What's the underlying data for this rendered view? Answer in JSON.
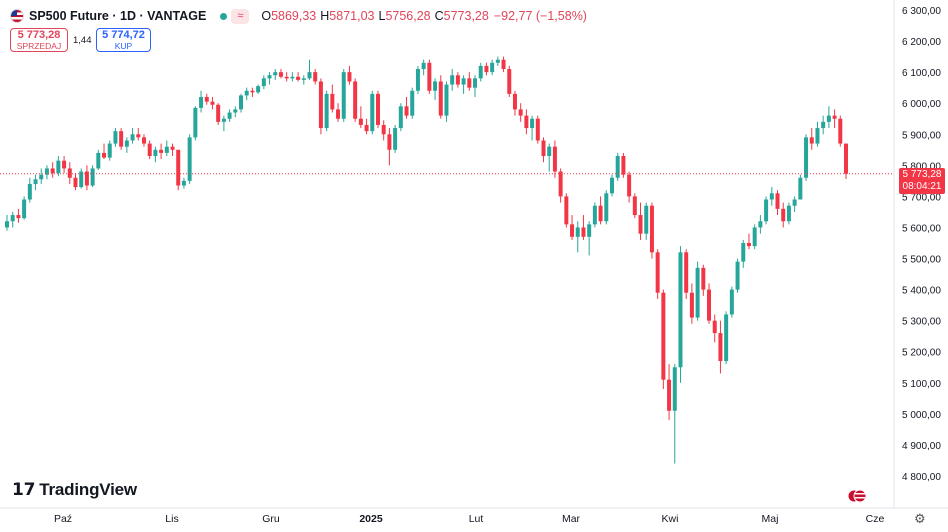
{
  "header": {
    "title": "SP500 Future · 1D · VANTAGE",
    "open_label": "O",
    "open": "5869,33",
    "high_label": "H",
    "high": "5871,03",
    "low_label": "L",
    "low": "5756,28",
    "close_label": "C",
    "close": "5773,28",
    "change": "−92,77 (−1,58%)"
  },
  "trade": {
    "sell_price": "5 773,28",
    "sell_label": "SPRZEDAJ",
    "spread": "1,44",
    "buy_price": "5 774,72",
    "buy_label": "KUP"
  },
  "last_price": {
    "value": "5 773,28",
    "countdown": "08:04:21"
  },
  "branding": {
    "logo_text": "TradingView"
  },
  "colors": {
    "up": "#26a69a",
    "down": "#f23645",
    "buy": "#2962ff",
    "last_line": "#f23645"
  },
  "chart_data": {
    "type": "candlestick",
    "y_ticks": [
      "4 800,00",
      "4 900,00",
      "5 000,00",
      "5 100,00",
      "5 200,00",
      "5 300,00",
      "5 400,00",
      "5 500,00",
      "5 600,00",
      "5 700,00",
      "5 800,00",
      "5 900,00",
      "6 000,00",
      "6 100,00",
      "6 200,00",
      "6 300,00"
    ],
    "x_ticks": [
      "Paź",
      "Lis",
      "Gru",
      "2025",
      "Lut",
      "Mar",
      "Kwi",
      "Maj",
      "Cze"
    ],
    "ylim": [
      4780,
      6320
    ],
    "grid": false,
    "ohlc": [
      [
        5600,
        5640,
        5590,
        5620
      ],
      [
        5620,
        5650,
        5600,
        5640
      ],
      [
        5640,
        5660,
        5615,
        5630
      ],
      [
        5630,
        5700,
        5625,
        5690
      ],
      [
        5690,
        5760,
        5680,
        5740
      ],
      [
        5740,
        5770,
        5720,
        5755
      ],
      [
        5755,
        5790,
        5740,
        5770
      ],
      [
        5770,
        5800,
        5755,
        5790
      ],
      [
        5790,
        5810,
        5760,
        5775
      ],
      [
        5775,
        5830,
        5765,
        5815
      ],
      [
        5815,
        5830,
        5775,
        5790
      ],
      [
        5790,
        5810,
        5740,
        5760
      ],
      [
        5760,
        5775,
        5720,
        5730
      ],
      [
        5730,
        5790,
        5725,
        5780
      ],
      [
        5780,
        5800,
        5720,
        5735
      ],
      [
        5735,
        5800,
        5730,
        5790
      ],
      [
        5790,
        5850,
        5785,
        5840
      ],
      [
        5840,
        5870,
        5820,
        5825
      ],
      [
        5825,
        5880,
        5815,
        5870
      ],
      [
        5870,
        5920,
        5860,
        5910
      ],
      [
        5910,
        5920,
        5850,
        5860
      ],
      [
        5860,
        5890,
        5840,
        5880
      ],
      [
        5880,
        5920,
        5870,
        5900
      ],
      [
        5900,
        5920,
        5880,
        5890
      ],
      [
        5890,
        5900,
        5860,
        5870
      ],
      [
        5870,
        5880,
        5820,
        5830
      ],
      [
        5830,
        5860,
        5810,
        5850
      ],
      [
        5850,
        5870,
        5820,
        5840
      ],
      [
        5840,
        5880,
        5830,
        5860
      ],
      [
        5860,
        5870,
        5830,
        5850
      ],
      [
        5850,
        5850,
        5720,
        5735
      ],
      [
        5735,
        5760,
        5725,
        5750
      ],
      [
        5750,
        5900,
        5740,
        5890
      ],
      [
        5890,
        5990,
        5880,
        5985
      ],
      [
        5985,
        6040,
        5970,
        6020
      ],
      [
        6020,
        6030,
        5995,
        6005
      ],
      [
        6005,
        6020,
        5980,
        5995
      ],
      [
        5995,
        6000,
        5930,
        5940
      ],
      [
        5940,
        5960,
        5910,
        5950
      ],
      [
        5950,
        5980,
        5940,
        5970
      ],
      [
        5970,
        5990,
        5955,
        5980
      ],
      [
        5980,
        6030,
        5970,
        6025
      ],
      [
        6025,
        6050,
        6010,
        6040
      ],
      [
        6040,
        6050,
        6020,
        6035
      ],
      [
        6035,
        6060,
        6030,
        6055
      ],
      [
        6055,
        6090,
        6045,
        6080
      ],
      [
        6080,
        6100,
        6060,
        6090
      ],
      [
        6090,
        6110,
        6075,
        6100
      ],
      [
        6100,
        6110,
        6080,
        6085
      ],
      [
        6085,
        6100,
        6070,
        6080
      ],
      [
        6080,
        6100,
        6070,
        6085
      ],
      [
        6085,
        6100,
        6070,
        6075
      ],
      [
        6075,
        6090,
        6060,
        6080
      ],
      [
        6080,
        6140,
        6075,
        6100
      ],
      [
        6100,
        6110,
        6060,
        6070
      ],
      [
        6070,
        6080,
        5900,
        5920
      ],
      [
        5920,
        6040,
        5910,
        6030
      ],
      [
        6030,
        6060,
        5970,
        5980
      ],
      [
        5980,
        6000,
        5940,
        5950
      ],
      [
        5950,
        6110,
        5940,
        6100
      ],
      [
        6100,
        6120,
        6060,
        6070
      ],
      [
        6070,
        6080,
        5940,
        5950
      ],
      [
        5950,
        5990,
        5920,
        5930
      ],
      [
        5930,
        5950,
        5900,
        5910
      ],
      [
        5910,
        6040,
        5900,
        6030
      ],
      [
        6030,
        6040,
        5920,
        5930
      ],
      [
        5930,
        5945,
        5880,
        5900
      ],
      [
        5900,
        5920,
        5800,
        5850
      ],
      [
        5850,
        5930,
        5840,
        5920
      ],
      [
        5920,
        6000,
        5910,
        5990
      ],
      [
        5990,
        6020,
        5950,
        5960
      ],
      [
        5960,
        6050,
        5950,
        6040
      ],
      [
        6040,
        6120,
        6030,
        6110
      ],
      [
        6110,
        6140,
        6090,
        6130
      ],
      [
        6130,
        6140,
        6030,
        6040
      ],
      [
        6040,
        6080,
        6010,
        6070
      ],
      [
        6070,
        6090,
        5950,
        5960
      ],
      [
        5960,
        6070,
        5940,
        6060
      ],
      [
        6060,
        6110,
        6040,
        6090
      ],
      [
        6090,
        6100,
        6050,
        6060
      ],
      [
        6060,
        6090,
        6030,
        6080
      ],
      [
        6080,
        6100,
        6040,
        6050
      ],
      [
        6050,
        6090,
        6020,
        6080
      ],
      [
        6080,
        6130,
        6070,
        6120
      ],
      [
        6120,
        6130,
        6090,
        6100
      ],
      [
        6100,
        6140,
        6090,
        6130
      ],
      [
        6130,
        6150,
        6120,
        6140
      ],
      [
        6140,
        6150,
        6100,
        6110
      ],
      [
        6110,
        6120,
        6020,
        6030
      ],
      [
        6030,
        6040,
        5960,
        5980
      ],
      [
        5980,
        6000,
        5940,
        5960
      ],
      [
        5960,
        5980,
        5900,
        5920
      ],
      [
        5920,
        5960,
        5880,
        5950
      ],
      [
        5950,
        5960,
        5870,
        5880
      ],
      [
        5880,
        5890,
        5810,
        5830
      ],
      [
        5830,
        5870,
        5780,
        5860
      ],
      [
        5860,
        5880,
        5760,
        5780
      ],
      [
        5780,
        5790,
        5680,
        5700
      ],
      [
        5700,
        5710,
        5600,
        5610
      ],
      [
        5610,
        5640,
        5560,
        5570
      ],
      [
        5570,
        5620,
        5520,
        5600
      ],
      [
        5600,
        5640,
        5560,
        5570
      ],
      [
        5570,
        5620,
        5510,
        5610
      ],
      [
        5610,
        5680,
        5600,
        5670
      ],
      [
        5670,
        5700,
        5610,
        5620
      ],
      [
        5620,
        5720,
        5610,
        5710
      ],
      [
        5710,
        5770,
        5700,
        5760
      ],
      [
        5760,
        5840,
        5750,
        5830
      ],
      [
        5830,
        5840,
        5760,
        5770
      ],
      [
        5770,
        5780,
        5680,
        5700
      ],
      [
        5700,
        5710,
        5630,
        5640
      ],
      [
        5640,
        5680,
        5560,
        5580
      ],
      [
        5580,
        5680,
        5560,
        5670
      ],
      [
        5670,
        5680,
        5500,
        5520
      ],
      [
        5520,
        5530,
        5370,
        5390
      ],
      [
        5390,
        5400,
        5080,
        5110
      ],
      [
        5110,
        5160,
        4980,
        5010
      ],
      [
        5010,
        5160,
        4840,
        5150
      ],
      [
        5150,
        5540,
        5100,
        5520
      ],
      [
        5520,
        5530,
        5370,
        5390
      ],
      [
        5390,
        5420,
        5290,
        5310
      ],
      [
        5310,
        5490,
        5300,
        5470
      ],
      [
        5470,
        5480,
        5380,
        5400
      ],
      [
        5400,
        5420,
        5290,
        5300
      ],
      [
        5300,
        5320,
        5230,
        5260
      ],
      [
        5260,
        5300,
        5130,
        5170
      ],
      [
        5170,
        5330,
        5160,
        5320
      ],
      [
        5320,
        5410,
        5310,
        5400
      ],
      [
        5400,
        5500,
        5390,
        5490
      ],
      [
        5490,
        5560,
        5470,
        5550
      ],
      [
        5550,
        5580,
        5530,
        5540
      ],
      [
        5540,
        5610,
        5530,
        5600
      ],
      [
        5600,
        5640,
        5580,
        5620
      ],
      [
        5620,
        5700,
        5610,
        5690
      ],
      [
        5690,
        5730,
        5670,
        5710
      ],
      [
        5710,
        5720,
        5640,
        5660
      ],
      [
        5660,
        5680,
        5600,
        5620
      ],
      [
        5620,
        5680,
        5610,
        5670
      ],
      [
        5670,
        5700,
        5650,
        5690
      ],
      [
        5690,
        5770,
        5690,
        5760
      ],
      [
        5760,
        5900,
        5750,
        5890
      ],
      [
        5890,
        5920,
        5850,
        5870
      ],
      [
        5870,
        5940,
        5860,
        5920
      ],
      [
        5920,
        5960,
        5900,
        5940
      ],
      [
        5940,
        5990,
        5920,
        5960
      ],
      [
        5960,
        5980,
        5920,
        5950
      ],
      [
        5950,
        5960,
        5860,
        5870
      ],
      [
        5870,
        5870,
        5756,
        5773
      ]
    ]
  }
}
